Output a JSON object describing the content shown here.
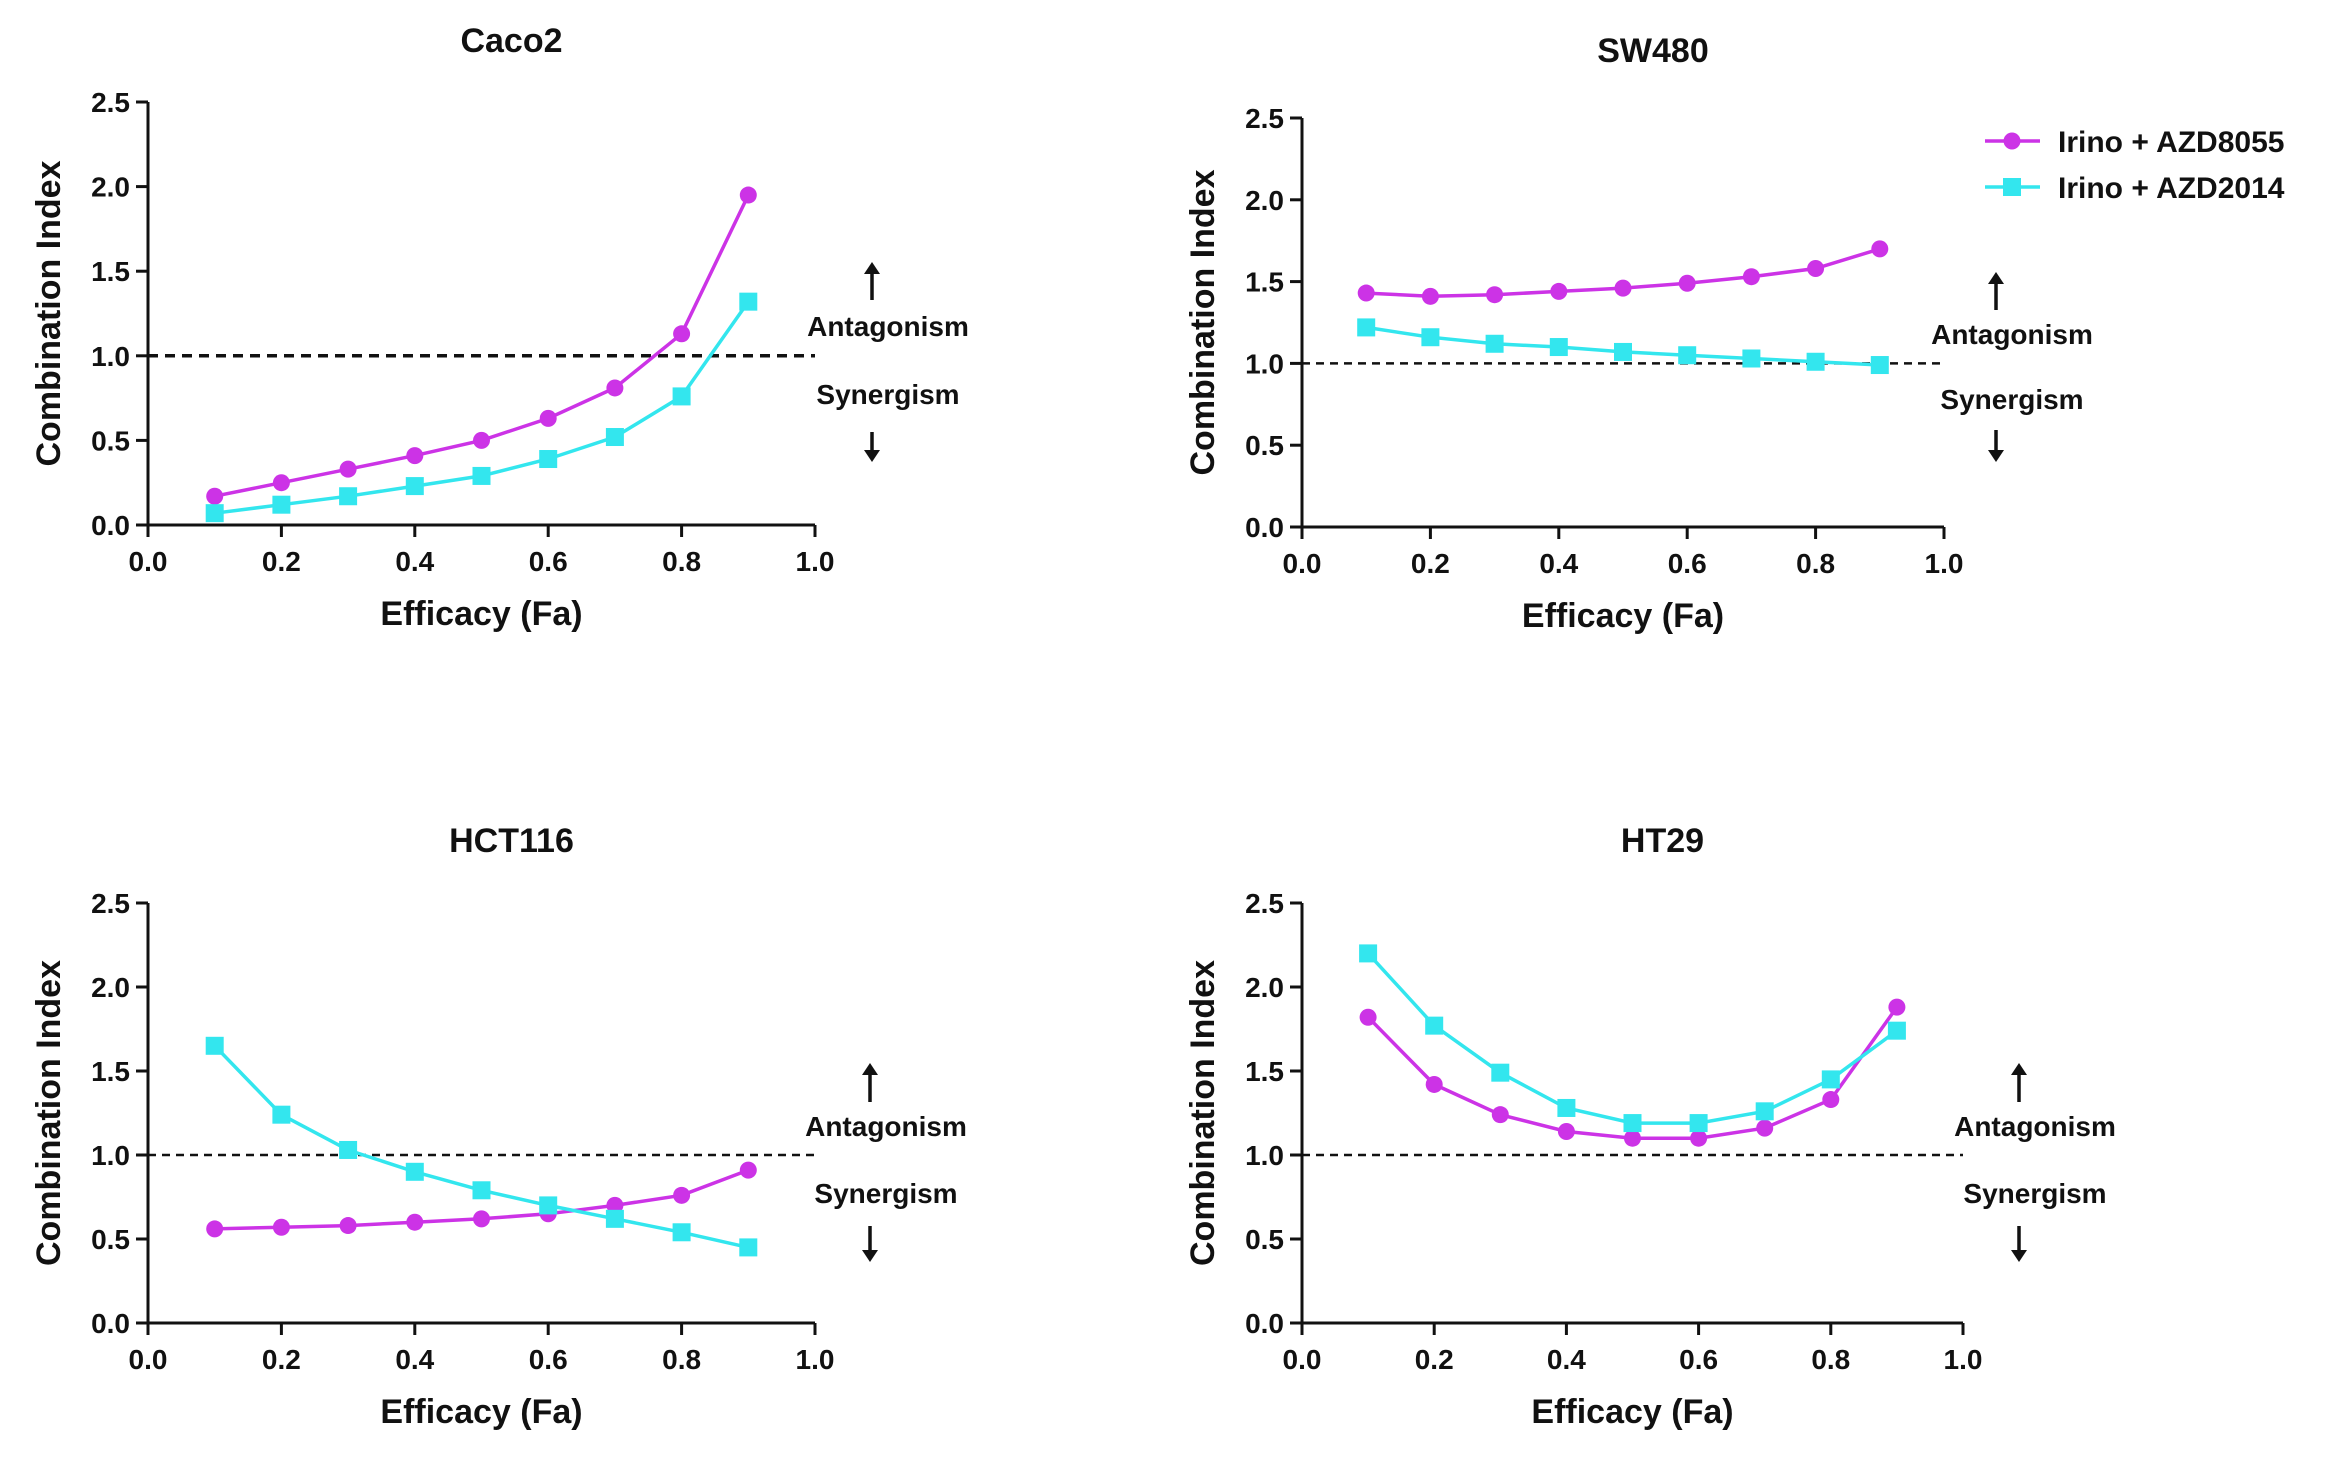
{
  "figure": {
    "legend": [
      {
        "label": "Irino + AZD8055",
        "color": "#CC33E6",
        "marker": "circle"
      },
      {
        "label": "Irino + AZD2014",
        "color": "#33E6EE",
        "marker": "square"
      }
    ],
    "zone_labels": {
      "above": "Antagonism",
      "below": "Synergism"
    }
  },
  "chart_data": [
    {
      "type": "line",
      "title": "Caco2",
      "xlabel": "Efficacy (Fa)",
      "ylabel": "Combination Index",
      "xlim": [
        0.0,
        1.0
      ],
      "ylim": [
        0.0,
        2.5
      ],
      "xticks": [
        "0.0",
        "0.2",
        "0.4",
        "0.6",
        "0.8",
        "1.0"
      ],
      "yticks": [
        "0.0",
        "0.5",
        "1.0",
        "1.5",
        "2.0",
        "2.5"
      ],
      "reference_line": 1.0,
      "x": [
        0.1,
        0.2,
        0.3,
        0.4,
        0.5,
        0.6,
        0.7,
        0.8,
        0.9
      ],
      "series": [
        {
          "name": "Irino + AZD8055",
          "color": "#CC33E6",
          "marker": "circle",
          "values": [
            0.17,
            0.25,
            0.33,
            0.41,
            0.5,
            0.63,
            0.81,
            1.13,
            1.95
          ]
        },
        {
          "name": "Irino + AZD2014",
          "color": "#33E6EE",
          "marker": "square",
          "values": [
            0.07,
            0.12,
            0.17,
            0.23,
            0.29,
            0.39,
            0.52,
            0.76,
            1.32
          ]
        }
      ]
    },
    {
      "type": "line",
      "title": "SW480",
      "xlabel": "Efficacy (Fa)",
      "ylabel": "Combination Index",
      "xlim": [
        0.0,
        1.0
      ],
      "ylim": [
        0.0,
        2.5
      ],
      "xticks": [
        "0.0",
        "0.2",
        "0.4",
        "0.6",
        "0.8",
        "1.0"
      ],
      "yticks": [
        "0.0",
        "0.5",
        "1.0",
        "1.5",
        "2.0",
        "2.5"
      ],
      "reference_line": 1.0,
      "x": [
        0.1,
        0.2,
        0.3,
        0.4,
        0.5,
        0.6,
        0.7,
        0.8,
        0.9
      ],
      "series": [
        {
          "name": "Irino + AZD8055",
          "color": "#CC33E6",
          "marker": "circle",
          "values": [
            1.43,
            1.41,
            1.42,
            1.44,
            1.46,
            1.49,
            1.53,
            1.58,
            1.7
          ]
        },
        {
          "name": "Irino + AZD2014",
          "color": "#33E6EE",
          "marker": "square",
          "values": [
            1.22,
            1.16,
            1.12,
            1.1,
            1.07,
            1.05,
            1.03,
            1.01,
            0.99
          ]
        }
      ]
    },
    {
      "type": "line",
      "title": "HCT116",
      "xlabel": "Efficacy (Fa)",
      "ylabel": "Combination Index",
      "xlim": [
        0.0,
        1.0
      ],
      "ylim": [
        0.0,
        2.5
      ],
      "xticks": [
        "0.0",
        "0.2",
        "0.4",
        "0.6",
        "0.8",
        "1.0"
      ],
      "yticks": [
        "0.0",
        "0.5",
        "1.0",
        "1.5",
        "2.0",
        "2.5"
      ],
      "reference_line": 1.0,
      "x": [
        0.1,
        0.2,
        0.3,
        0.4,
        0.5,
        0.6,
        0.7,
        0.8,
        0.9
      ],
      "series": [
        {
          "name": "Irino + AZD8055",
          "color": "#CC33E6",
          "marker": "circle",
          "values": [
            0.56,
            0.57,
            0.58,
            0.6,
            0.62,
            0.65,
            0.7,
            0.76,
            0.91
          ]
        },
        {
          "name": "Irino + AZD2014",
          "color": "#33E6EE",
          "marker": "square",
          "values": [
            1.65,
            1.24,
            1.03,
            0.9,
            0.79,
            0.7,
            0.62,
            0.54,
            0.45
          ]
        }
      ]
    },
    {
      "type": "line",
      "title": "HT29",
      "xlabel": "Efficacy (Fa)",
      "ylabel": "Combination Index",
      "xlim": [
        0.0,
        1.0
      ],
      "ylim": [
        0.0,
        2.5
      ],
      "xticks": [
        "0.0",
        "0.2",
        "0.4",
        "0.6",
        "0.8",
        "1.0"
      ],
      "yticks": [
        "0.0",
        "0.5",
        "1.0",
        "1.5",
        "2.0",
        "2.5"
      ],
      "reference_line": 1.0,
      "x": [
        0.1,
        0.2,
        0.3,
        0.4,
        0.5,
        0.6,
        0.7,
        0.8,
        0.9
      ],
      "series": [
        {
          "name": "Irino + AZD8055",
          "color": "#CC33E6",
          "marker": "circle",
          "values": [
            1.82,
            1.42,
            1.24,
            1.14,
            1.1,
            1.1,
            1.16,
            1.33,
            1.88
          ]
        },
        {
          "name": "Irino + AZD2014",
          "color": "#33E6EE",
          "marker": "square",
          "values": [
            2.2,
            1.77,
            1.49,
            1.28,
            1.19,
            1.19,
            1.26,
            1.45,
            1.74
          ]
        }
      ]
    }
  ]
}
